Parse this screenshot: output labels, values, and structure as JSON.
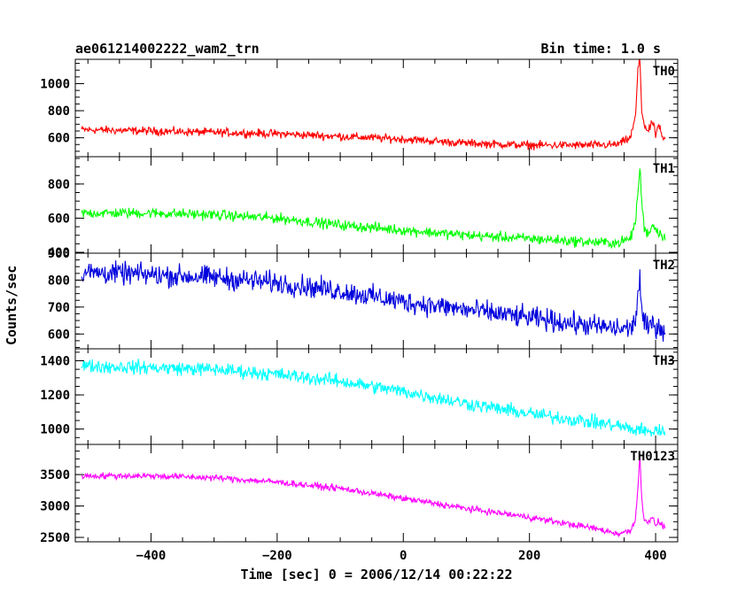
{
  "header": {
    "title_left": "ae061214002222_wam2_trn",
    "title_right": "Bin time: 1.0 s"
  },
  "axes": {
    "xlabel": "Time [sec] 0 = 2006/12/14 00:22:22",
    "ylabel": "Counts/sec"
  },
  "chart_data": [
    {
      "type": "line",
      "name": "TH0",
      "color": "#ff0000",
      "x": [
        -510,
        -400,
        -300,
        -200,
        -100,
        0,
        100,
        200,
        300,
        340,
        360,
        368,
        372,
        375,
        378,
        382,
        388,
        395,
        400,
        405,
        410,
        415
      ],
      "y": [
        660,
        650,
        640,
        630,
        610,
        590,
        560,
        545,
        545,
        550,
        600,
        750,
        1100,
        1200,
        800,
        700,
        640,
        720,
        620,
        700,
        600,
        580
      ],
      "noise": 30,
      "ylim": [
        460,
        1180
      ],
      "yticks": [
        600,
        800,
        1000
      ],
      "xlim": [
        -520,
        435
      ]
    },
    {
      "type": "line",
      "name": "TH1",
      "color": "#00ff00",
      "x": [
        -510,
        -400,
        -300,
        -200,
        -100,
        0,
        100,
        200,
        300,
        340,
        360,
        368,
        372,
        375,
        378,
        382,
        388,
        395,
        400,
        405,
        410,
        415
      ],
      "y": [
        630,
        630,
        620,
        600,
        560,
        530,
        500,
        480,
        460,
        455,
        480,
        580,
        750,
        900,
        700,
        540,
        510,
        560,
        540,
        520,
        500,
        480
      ],
      "noise": 30,
      "ylim": [
        395,
        960
      ],
      "yticks": [
        400,
        600,
        800
      ],
      "xlim": [
        -520,
        435
      ]
    },
    {
      "type": "line",
      "name": "TH2",
      "color": "#0000dd",
      "x": [
        -510,
        -400,
        -300,
        -200,
        -100,
        0,
        100,
        200,
        300,
        340,
        360,
        368,
        372,
        375,
        378,
        382,
        388,
        395,
        400,
        405,
        410,
        415
      ],
      "y": [
        830,
        820,
        810,
        790,
        760,
        720,
        690,
        660,
        630,
        620,
        620,
        650,
        750,
        800,
        680,
        640,
        620,
        640,
        630,
        625,
        620,
        615
      ],
      "noise": 40,
      "ylim": [
        545,
        900
      ],
      "yticks": [
        600,
        700,
        800,
        900
      ],
      "xlim": [
        -520,
        435
      ]
    },
    {
      "type": "line",
      "name": "TH3",
      "color": "#00ffff",
      "x": [
        -510,
        -400,
        -300,
        -200,
        -100,
        0,
        100,
        200,
        300,
        340,
        360,
        368,
        372,
        375,
        378,
        382,
        388,
        395,
        400,
        405,
        410,
        415
      ],
      "y": [
        1370,
        1360,
        1350,
        1320,
        1280,
        1220,
        1150,
        1090,
        1040,
        1020,
        1000,
        990,
        1000,
        1010,
        995,
        990,
        980,
        985,
        1000,
        990,
        980,
        985
      ],
      "noise": 40,
      "ylim": [
        910,
        1470
      ],
      "yticks": [
        1000,
        1200,
        1400
      ],
      "xlim": [
        -520,
        435
      ]
    },
    {
      "type": "line",
      "name": "TH0123",
      "color": "#ff00ff",
      "x": [
        -510,
        -400,
        -300,
        -200,
        -100,
        0,
        100,
        200,
        300,
        340,
        360,
        368,
        372,
        375,
        378,
        382,
        388,
        395,
        400,
        405,
        410,
        415
      ],
      "y": [
        3480,
        3480,
        3450,
        3380,
        3280,
        3120,
        2960,
        2820,
        2650,
        2560,
        2600,
        2800,
        3300,
        3800,
        3100,
        2800,
        2750,
        2800,
        2700,
        2750,
        2700,
        2650
      ],
      "noise": 50,
      "ylim": [
        2430,
        3980
      ],
      "yticks": [
        2500,
        3000,
        3500
      ],
      "xlim": [
        -520,
        435
      ]
    }
  ],
  "xticks": [
    -400,
    -200,
    0,
    200,
    400
  ]
}
